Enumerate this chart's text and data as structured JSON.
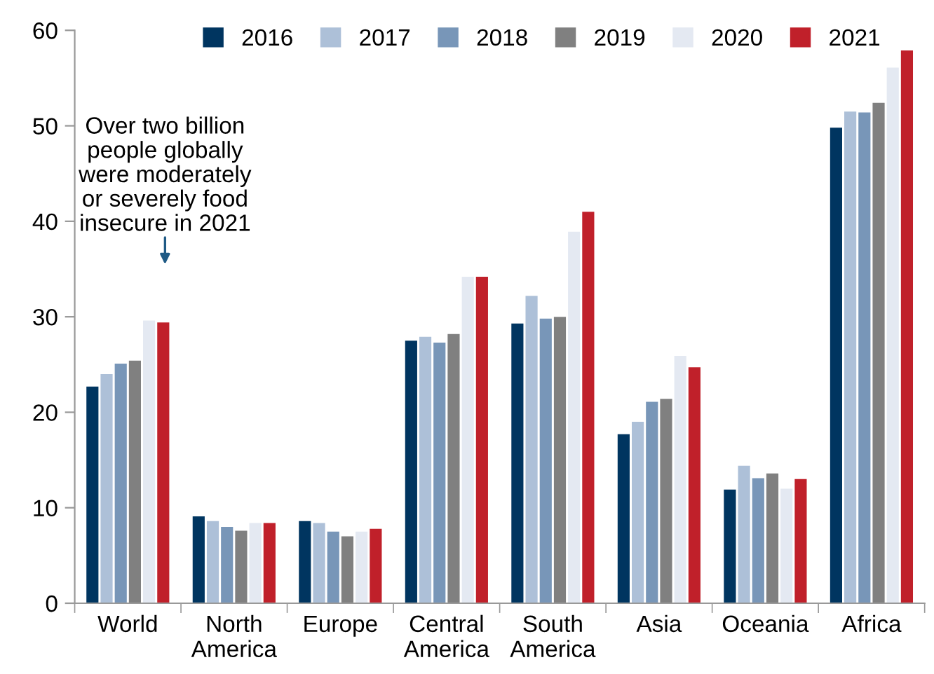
{
  "chart_data": {
    "type": "bar",
    "categories": [
      "World",
      "North\nAmerica",
      "Europe",
      "Central\nAmerica",
      "South\nAmerica",
      "Asia",
      "Oceania",
      "Africa"
    ],
    "series": [
      {
        "name": "2016",
        "color": "#003560",
        "values": [
          22.7,
          9.1,
          8.6,
          27.5,
          29.3,
          17.7,
          11.9,
          49.8
        ]
      },
      {
        "name": "2017",
        "color": "#adc0d8",
        "values": [
          24.0,
          8.6,
          8.4,
          27.9,
          32.2,
          19.0,
          14.4,
          51.5
        ]
      },
      {
        "name": "2018",
        "color": "#7896b8",
        "values": [
          25.1,
          8.0,
          7.5,
          27.3,
          29.8,
          21.1,
          13.1,
          51.4
        ]
      },
      {
        "name": "2019",
        "color": "#808080",
        "values": [
          25.4,
          7.6,
          7.0,
          28.2,
          30.0,
          21.4,
          13.6,
          52.4
        ]
      },
      {
        "name": "2020",
        "color": "#e4e9f2",
        "values": [
          29.6,
          8.4,
          7.5,
          34.2,
          38.9,
          25.9,
          12.0,
          56.1
        ]
      },
      {
        "name": "2021",
        "color": "#c0202a",
        "values": [
          29.4,
          8.4,
          7.8,
          34.2,
          41.0,
          24.7,
          13.0,
          57.9
        ]
      }
    ],
    "ylim": [
      0,
      60
    ],
    "yticks": [
      0,
      10,
      20,
      30,
      40,
      50,
      60
    ],
    "legend": "top",
    "annotations": [
      "Over two billion\npeople globally\nwere moderately\nor severely food\ninsecure in 2021"
    ]
  }
}
